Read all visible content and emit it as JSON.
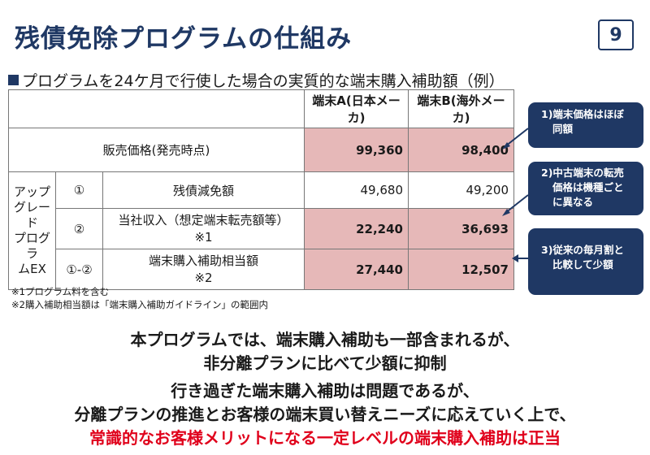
{
  "title": "残債免除プログラムの仕組み",
  "page_number": "9",
  "subtitle": "プログラムを24ケ月で行使した場合の実質的な端末購入補助額（例）",
  "table": {
    "columns": [
      "端末A(日本メーカ)",
      "端末B(海外メーカ)"
    ],
    "sales_price": {
      "label": "販売価格(発売時点)",
      "a": "99,360",
      "b": "98,400"
    },
    "group_label_lines": [
      "アップ",
      "グレード",
      "プログラ",
      "ムEX"
    ],
    "rows": [
      {
        "no": "①",
        "label": "残債減免額",
        "label2": "",
        "a": "49,680",
        "b": "49,200"
      },
      {
        "no": "②",
        "label": "当社収入（想定端末転売額等）",
        "label2": "※1",
        "a": "22,240",
        "b": "36,693"
      },
      {
        "no": "①-②",
        "label": "端末購入補助相当額",
        "label2": "※2",
        "a": "27,440",
        "b": "12,507"
      }
    ]
  },
  "footnotes": [
    "※1プログラム料を含む",
    "※2購入補助相当額は「端末購入補助ガイドライン」の範囲内"
  ],
  "callouts": [
    {
      "lines": [
        "1)端末価格はほぼ",
        "同額"
      ]
    },
    {
      "lines": [
        "2)中古端末の転売",
        "価格は機種ごと",
        "に異なる"
      ]
    },
    {
      "lines": [
        "3)従来の毎月割と",
        "比較して少額"
      ]
    }
  ],
  "messages": [
    "本プログラムでは、端末購入補助も一部含まれるが、",
    "非分離プランに比べて少額に抑制",
    "行き過ぎた端末購入補助は問題であるが、",
    "分離プランの推進とお客様の端末買い替えニーズに応えていく上で、",
    "常識的なお客様メリットになる一定レベルの端末購入補助は正当"
  ],
  "colors": {
    "navy": "#1f3864",
    "highlight": "#e6b8b8",
    "emphasis_red": "#e0001b"
  }
}
